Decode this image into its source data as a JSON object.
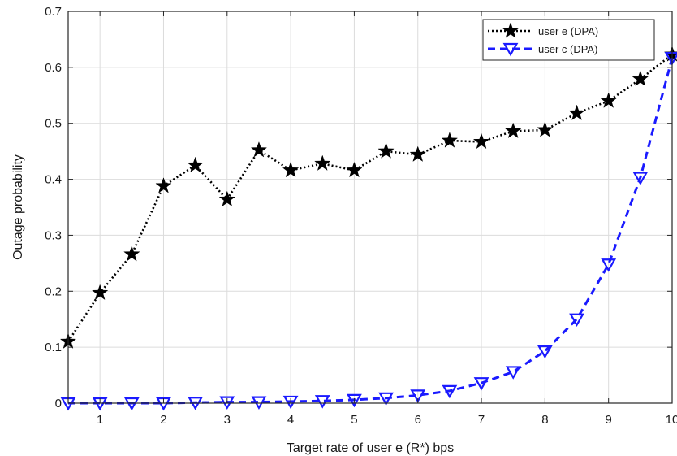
{
  "chart_data": {
    "type": "line",
    "xlabel": "Target rate of user e (R*) bps",
    "ylabel": "Outage probability",
    "xlim": [
      0.5,
      10
    ],
    "ylim": [
      0,
      0.7
    ],
    "x_ticks": [
      1,
      2,
      3,
      4,
      5,
      6,
      7,
      8,
      9,
      10
    ],
    "y_ticks": [
      0,
      0.1,
      0.2,
      0.3,
      0.4,
      0.5,
      0.6,
      0.7
    ],
    "y_tick_labels": [
      "0",
      "0.1",
      "0.2",
      "0.3",
      "0.4",
      "0.5",
      "0.6",
      "0.7"
    ],
    "grid": true,
    "legend_position": "top-right",
    "x": [
      0.5,
      1,
      1.5,
      2,
      2.5,
      3,
      3.5,
      4,
      4.5,
      5,
      5.5,
      6,
      6.5,
      7,
      7.5,
      8,
      8.5,
      9,
      9.5,
      10
    ],
    "series": [
      {
        "name": "user e (DPA)",
        "color": "#000000",
        "line_style": "dotted",
        "marker": "pentagram",
        "values": [
          0.11,
          0.197,
          0.266,
          0.388,
          0.425,
          0.364,
          0.452,
          0.416,
          0.428,
          0.416,
          0.45,
          0.444,
          0.469,
          0.467,
          0.486,
          0.488,
          0.518,
          0.54,
          0.579,
          0.623
        ]
      },
      {
        "name": "user c (DPA)",
        "color": "#1a1aff",
        "line_style": "dashed",
        "marker": "triangle-down",
        "values": [
          0.0,
          0.0,
          0.0,
          0.0,
          0.001,
          0.002,
          0.002,
          0.003,
          0.004,
          0.006,
          0.009,
          0.014,
          0.022,
          0.036,
          0.056,
          0.093,
          0.15,
          0.248,
          0.403,
          0.617
        ]
      }
    ]
  }
}
